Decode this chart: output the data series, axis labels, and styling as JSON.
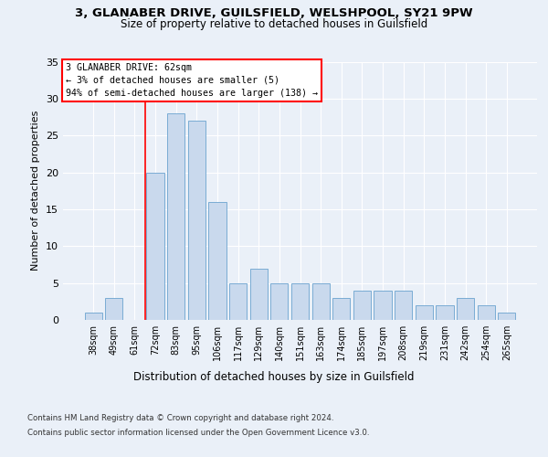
{
  "title1": "3, GLANABER DRIVE, GUILSFIELD, WELSHPOOL, SY21 9PW",
  "title2": "Size of property relative to detached houses in Guilsfield",
  "xlabel": "Distribution of detached houses by size in Guilsfield",
  "ylabel": "Number of detached properties",
  "categories": [
    "38sqm",
    "49sqm",
    "61sqm",
    "72sqm",
    "83sqm",
    "95sqm",
    "106sqm",
    "117sqm",
    "129sqm",
    "140sqm",
    "151sqm",
    "163sqm",
    "174sqm",
    "185sqm",
    "197sqm",
    "208sqm",
    "219sqm",
    "231sqm",
    "242sqm",
    "254sqm",
    "265sqm"
  ],
  "values": [
    1,
    3,
    0,
    20,
    28,
    27,
    16,
    5,
    7,
    5,
    5,
    5,
    3,
    4,
    4,
    4,
    2,
    2,
    3,
    2,
    1
  ],
  "bar_color": "#c9d9ed",
  "bar_edge_color": "#7aacd4",
  "red_line_x": 2,
  "annotation_text": "3 GLANABER DRIVE: 62sqm\n← 3% of detached houses are smaller (5)\n94% of semi-detached houses are larger (138) →",
  "footer1": "Contains HM Land Registry data © Crown copyright and database right 2024.",
  "footer2": "Contains public sector information licensed under the Open Government Licence v3.0.",
  "bg_color": "#eaf0f8",
  "plot_bg_color": "#eaf0f8",
  "ylim": [
    0,
    35
  ],
  "yticks": [
    0,
    5,
    10,
    15,
    20,
    25,
    30,
    35
  ]
}
